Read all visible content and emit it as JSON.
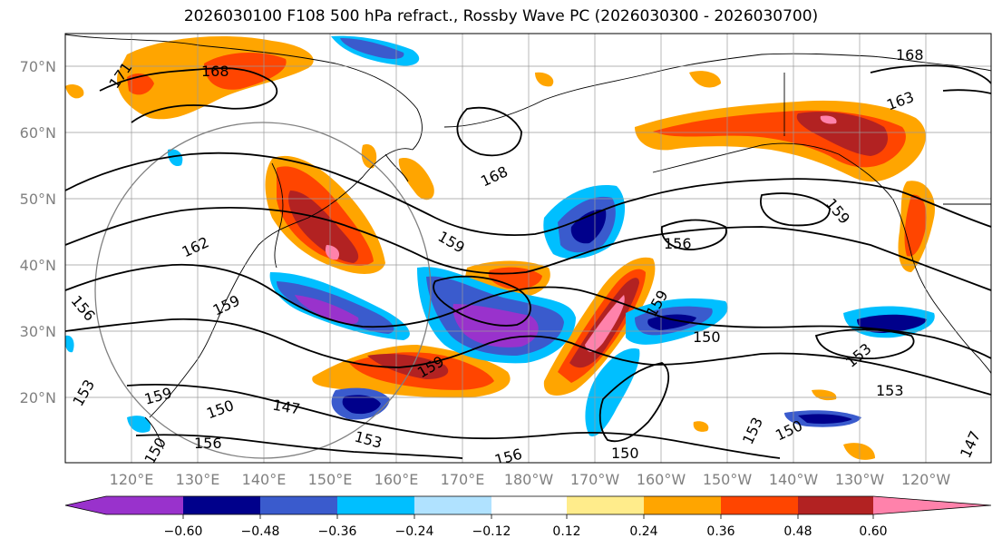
{
  "title": "2026030100 F108 500 hPa refract., Rossby Wave PC (2026030300 - 2026030700)",
  "lat_labels": [
    "70°N",
    "60°N",
    "50°N",
    "40°N",
    "30°N",
    "20°N"
  ],
  "lon_labels": [
    "120°E",
    "130°E",
    "140°E",
    "150°E",
    "160°E",
    "170°E",
    "180°W",
    "170°W",
    "160°W",
    "150°W",
    "140°W",
    "130°W",
    "120°W"
  ],
  "colorbar": {
    "colors": [
      "#9932cc",
      "#00008b",
      "#3a5bcd",
      "#00bfff",
      "#b0e2ff",
      "#ffffff",
      "#ffec8b",
      "#ffa500",
      "#ff4500",
      "#b22222",
      "#ff82ab"
    ],
    "ticks": [
      "−0.60",
      "−0.48",
      "−0.36",
      "−0.24",
      "−0.12",
      "0.12",
      "0.24",
      "0.36",
      "0.48",
      "0.60"
    ]
  },
  "contour_labels": [
    "171",
    "168",
    "168",
    "168",
    "163",
    "162",
    "159",
    "159",
    "159",
    "159",
    "156",
    "156",
    "156",
    "156",
    "153",
    "153",
    "153",
    "153",
    "150",
    "150",
    "150",
    "150",
    "147",
    "147",
    "159",
    "159",
    "153",
    "150"
  ]
}
